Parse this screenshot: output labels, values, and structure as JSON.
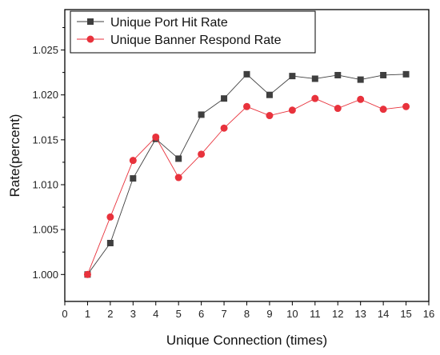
{
  "chart_data": {
    "type": "line",
    "xlabel": "Unique Connection (times)",
    "ylabel": "Rate(percent)",
    "xlim": [
      0,
      16
    ],
    "ylim": [
      0.997,
      1.0295
    ],
    "xticks": [
      0,
      1,
      2,
      3,
      4,
      5,
      6,
      7,
      8,
      9,
      10,
      11,
      12,
      13,
      14,
      15,
      16
    ],
    "yticks": [
      1.0,
      1.005,
      1.01,
      1.015,
      1.02,
      1.025
    ],
    "ytick_labels": [
      "1.000",
      "1.005",
      "1.010",
      "1.015",
      "1.020",
      "1.025"
    ],
    "grid": false,
    "legend_position": "top-left",
    "x": [
      1,
      2,
      3,
      4,
      5,
      6,
      7,
      8,
      9,
      10,
      11,
      12,
      13,
      14,
      15
    ],
    "series": [
      {
        "name": "Unique Port Hit Rate",
        "color": "#3f3f3f",
        "marker": "square",
        "values": [
          1.0,
          1.0035,
          1.0107,
          1.0151,
          1.0129,
          1.0178,
          1.0196,
          1.0223,
          1.02,
          1.0221,
          1.0218,
          1.0222,
          1.0217,
          1.0222,
          1.0223
        ]
      },
      {
        "name": "Unique Banner Respond Rate",
        "color": "#e8323c",
        "marker": "circle",
        "values": [
          1.0,
          1.0064,
          1.0127,
          1.0153,
          1.0108,
          1.0134,
          1.0163,
          1.0187,
          1.0177,
          1.0183,
          1.0196,
          1.0185,
          1.0195,
          1.0184,
          1.0187
        ]
      }
    ]
  }
}
